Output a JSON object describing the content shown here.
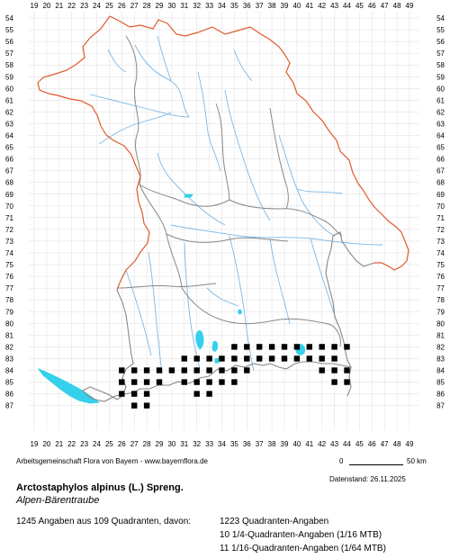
{
  "map": {
    "x_labels": [
      "19",
      "20",
      "21",
      "22",
      "23",
      "24",
      "25",
      "26",
      "27",
      "28",
      "29",
      "30",
      "31",
      "32",
      "33",
      "34",
      "35",
      "36",
      "37",
      "38",
      "39",
      "40",
      "41",
      "42",
      "43",
      "44",
      "45",
      "46",
      "47",
      "48",
      "49"
    ],
    "y_labels": [
      "54",
      "55",
      "56",
      "57",
      "58",
      "59",
      "60",
      "61",
      "62",
      "63",
      "64",
      "65",
      "66",
      "67",
      "68",
      "69",
      "70",
      "71",
      "72",
      "73",
      "74",
      "75",
      "76",
      "77",
      "78",
      "79",
      "80",
      "81",
      "82",
      "83",
      "84",
      "85",
      "86",
      "87"
    ],
    "colors": {
      "grid": "#dddddd",
      "state_border": "#e05a2a",
      "district_border": "#888888",
      "river": "#7ab8e8",
      "lake": "#35d0ec",
      "occurrence": "#000000"
    },
    "occurrences": [
      [
        26,
        84
      ],
      [
        27,
        84
      ],
      [
        28,
        84
      ],
      [
        29,
        84
      ],
      [
        30,
        84
      ],
      [
        31,
        84
      ],
      [
        32,
        84
      ],
      [
        33,
        84
      ],
      [
        34,
        84
      ],
      [
        35,
        84
      ],
      [
        36,
        84
      ],
      [
        26,
        85
      ],
      [
        27,
        85
      ],
      [
        28,
        85
      ],
      [
        29,
        85
      ],
      [
        31,
        85
      ],
      [
        32,
        85
      ],
      [
        33,
        85
      ],
      [
        34,
        85
      ],
      [
        35,
        85
      ],
      [
        26,
        86
      ],
      [
        27,
        86
      ],
      [
        28,
        86
      ],
      [
        32,
        86
      ],
      [
        33,
        86
      ],
      [
        27,
        87
      ],
      [
        28,
        87
      ],
      [
        31,
        83
      ],
      [
        32,
        83
      ],
      [
        33,
        83
      ],
      [
        34,
        83
      ],
      [
        35,
        83
      ],
      [
        36,
        83
      ],
      [
        37,
        83
      ],
      [
        38,
        83
      ],
      [
        39,
        83
      ],
      [
        40,
        83
      ],
      [
        41,
        83
      ],
      [
        42,
        83
      ],
      [
        43,
        83
      ],
      [
        35,
        82
      ],
      [
        36,
        82
      ],
      [
        37,
        82
      ],
      [
        38,
        82
      ],
      [
        40,
        82
      ],
      [
        41,
        82
      ],
      [
        42,
        82
      ],
      [
        43,
        82
      ],
      [
        44,
        82
      ],
      [
        43,
        84
      ],
      [
        44,
        84
      ],
      [
        43,
        85
      ],
      [
        44,
        85
      ],
      [
        42,
        84
      ],
      [
        39,
        82
      ]
    ]
  },
  "credit": "Arbeitsgemeinschaft Flora von Bayern - www.bayernflora.de",
  "scale": {
    "start": "0",
    "end": "50 km"
  },
  "date": "Datenstand: 26.11.2025",
  "species": {
    "scientific": "Arctostaphylos alpinus (L.) Spreng.",
    "german": "Alpen-Bärentraube"
  },
  "stats": {
    "summary": "1245 Angaben aus 109 Quadranten, davon:",
    "quadrant": "1223 Quadranten-Angaben",
    "quarter": "10 1/4-Quadranten-Angaben (1/16 MTB)",
    "sixteenth": "11 1/16-Quadranten-Angaben (1/64 MTB)"
  }
}
